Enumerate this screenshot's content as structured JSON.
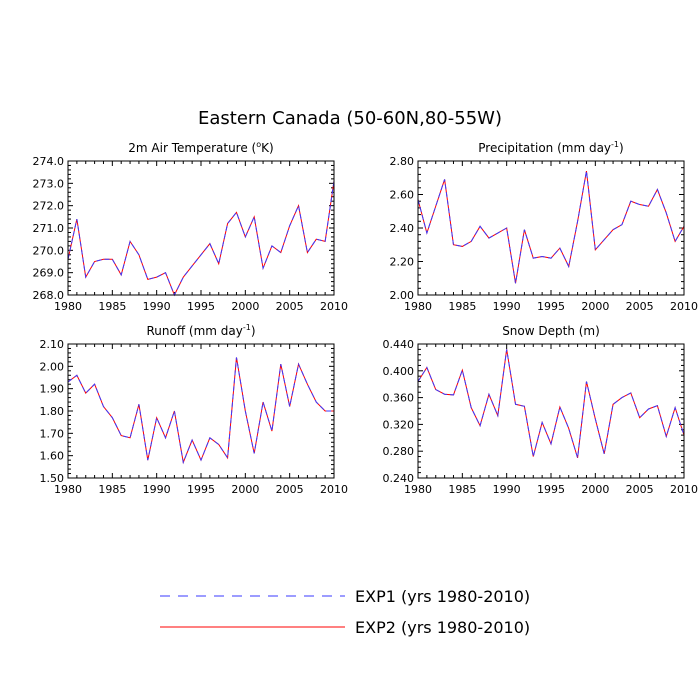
{
  "figure": {
    "title": "Eastern Canada (50-60N,80-55W)"
  },
  "legend": [
    {
      "label": "EXP1 (yrs 1980-2010)",
      "color": "#3a3aff",
      "style": "dashed"
    },
    {
      "label": "EXP2 (yrs 1980-2010)",
      "color": "#ff0000",
      "style": "solid"
    }
  ],
  "chart_data": [
    {
      "type": "line",
      "title": "2m Air Temperature (",
      "title_sup": "o",
      "title_end": "K)",
      "xlim": [
        1980,
        2010
      ],
      "ylim": [
        268.0,
        274.0
      ],
      "xticks": [
        1980,
        1985,
        1990,
        1995,
        2000,
        2005,
        2010
      ],
      "yticks": [
        "268.0",
        "269.0",
        "270.0",
        "271.0",
        "272.0",
        "273.0",
        "274.0"
      ],
      "x": [
        1980,
        1981,
        1982,
        1983,
        1984,
        1985,
        1986,
        1987,
        1988,
        1989,
        1990,
        1991,
        1992,
        1993,
        1994,
        1995,
        1996,
        1997,
        1998,
        1999,
        2000,
        2001,
        2002,
        2003,
        2004,
        2005,
        2006,
        2007,
        2008,
        2009,
        2010
      ],
      "series": [
        {
          "name": "EXP1 (yrs 1980-2010)",
          "values": [
            269.6,
            271.4,
            268.8,
            269.5,
            269.6,
            269.6,
            268.9,
            270.4,
            269.8,
            268.7,
            268.8,
            269.0,
            268.0,
            268.8,
            269.3,
            269.8,
            270.3,
            269.4,
            271.2,
            271.7,
            270.6,
            271.5,
            269.2,
            270.2,
            269.9,
            271.1,
            272.0,
            269.9,
            270.5,
            270.4,
            273.1
          ]
        },
        {
          "name": "EXP2 (yrs 1980-2010)",
          "values": [
            269.6,
            271.4,
            268.8,
            269.5,
            269.6,
            269.6,
            268.9,
            270.4,
            269.8,
            268.7,
            268.8,
            269.0,
            268.0,
            268.8,
            269.3,
            269.8,
            270.3,
            269.4,
            271.2,
            271.7,
            270.6,
            271.5,
            269.2,
            270.2,
            269.9,
            271.1,
            272.0,
            269.9,
            270.5,
            270.4,
            273.1
          ]
        }
      ]
    },
    {
      "type": "line",
      "title": "Precipitation (mm day",
      "title_sup": "-1",
      "title_end": ")",
      "xlim": [
        1980,
        2010
      ],
      "ylim": [
        2.0,
        2.8
      ],
      "xticks": [
        1980,
        1985,
        1990,
        1995,
        2000,
        2005,
        2010
      ],
      "yticks": [
        "2.00",
        "2.20",
        "2.40",
        "2.60",
        "2.80"
      ],
      "x": [
        1980,
        1981,
        1982,
        1983,
        1984,
        1985,
        1986,
        1987,
        1988,
        1989,
        1990,
        1991,
        1992,
        1993,
        1994,
        1995,
        1996,
        1997,
        1998,
        1999,
        2000,
        2001,
        2002,
        2003,
        2004,
        2005,
        2006,
        2007,
        2008,
        2009,
        2010
      ],
      "series": [
        {
          "name": "EXP1 (yrs 1980-2010)",
          "values": [
            2.57,
            2.37,
            2.53,
            2.69,
            2.3,
            2.29,
            2.32,
            2.41,
            2.34,
            2.37,
            2.4,
            2.07,
            2.39,
            2.22,
            2.23,
            2.22,
            2.28,
            2.17,
            2.44,
            2.74,
            2.27,
            2.33,
            2.39,
            2.42,
            2.56,
            2.54,
            2.53,
            2.63,
            2.49,
            2.32,
            2.41
          ]
        },
        {
          "name": "EXP2 (yrs 1980-2010)",
          "values": [
            2.57,
            2.37,
            2.53,
            2.69,
            2.3,
            2.29,
            2.32,
            2.41,
            2.34,
            2.37,
            2.4,
            2.07,
            2.39,
            2.22,
            2.23,
            2.22,
            2.28,
            2.17,
            2.44,
            2.74,
            2.27,
            2.33,
            2.39,
            2.42,
            2.56,
            2.54,
            2.53,
            2.63,
            2.49,
            2.32,
            2.41
          ]
        }
      ]
    },
    {
      "type": "line",
      "title": "Runoff (mm day",
      "title_sup": "-1",
      "title_end": ")",
      "xlim": [
        1980,
        2010
      ],
      "ylim": [
        1.5,
        2.1
      ],
      "xticks": [
        1980,
        1985,
        1990,
        1995,
        2000,
        2005,
        2010
      ],
      "yticks": [
        "1.50",
        "1.60",
        "1.70",
        "1.80",
        "1.90",
        "2.00",
        "2.10"
      ],
      "x": [
        1980,
        1981,
        1982,
        1983,
        1984,
        1985,
        1986,
        1987,
        1988,
        1989,
        1990,
        1991,
        1992,
        1993,
        1994,
        1995,
        1996,
        1997,
        1998,
        1999,
        2000,
        2001,
        2002,
        2003,
        2004,
        2005,
        2006,
        2007,
        2008,
        2009,
        2010
      ],
      "series": [
        {
          "name": "EXP1 (yrs 1980-2010)",
          "values": [
            1.93,
            1.96,
            1.88,
            1.92,
            1.82,
            1.77,
            1.69,
            1.68,
            1.83,
            1.58,
            1.77,
            1.68,
            1.8,
            1.57,
            1.67,
            1.58,
            1.68,
            1.65,
            1.59,
            2.04,
            1.8,
            1.61,
            1.84,
            1.71,
            2.01,
            1.82,
            2.01,
            1.92,
            1.84,
            1.8,
            1.8
          ]
        },
        {
          "name": "EXP2 (yrs 1980-2010)",
          "values": [
            1.93,
            1.96,
            1.88,
            1.92,
            1.82,
            1.77,
            1.69,
            1.68,
            1.83,
            1.58,
            1.77,
            1.68,
            1.8,
            1.57,
            1.67,
            1.58,
            1.68,
            1.65,
            1.59,
            2.04,
            1.8,
            1.61,
            1.84,
            1.71,
            2.01,
            1.82,
            2.01,
            1.92,
            1.84,
            1.8,
            1.8
          ]
        }
      ]
    },
    {
      "type": "line",
      "title": "Snow Depth (m)",
      "title_sup": "",
      "title_end": "",
      "xlim": [
        1980,
        2010
      ],
      "ylim": [
        0.24,
        0.44
      ],
      "xticks": [
        1980,
        1985,
        1990,
        1995,
        2000,
        2005,
        2010
      ],
      "yticks": [
        "0.240",
        "0.280",
        "0.320",
        "0.360",
        "0.400",
        "0.440"
      ],
      "x": [
        1980,
        1981,
        1982,
        1983,
        1984,
        1985,
        1986,
        1987,
        1988,
        1989,
        1990,
        1991,
        1992,
        1993,
        1994,
        1995,
        1996,
        1997,
        1998,
        1999,
        2000,
        2001,
        2002,
        2003,
        2004,
        2005,
        2006,
        2007,
        2008,
        2009,
        2010
      ],
      "series": [
        {
          "name": "EXP1 (yrs 1980-2010)",
          "values": [
            0.384,
            0.405,
            0.372,
            0.365,
            0.364,
            0.401,
            0.345,
            0.318,
            0.365,
            0.333,
            0.432,
            0.35,
            0.347,
            0.272,
            0.323,
            0.291,
            0.346,
            0.314,
            0.27,
            0.384,
            0.328,
            0.276,
            0.35,
            0.36,
            0.367,
            0.33,
            0.343,
            0.348,
            0.302,
            0.345,
            0.304
          ]
        },
        {
          "name": "EXP2 (yrs 1980-2010)",
          "values": [
            0.384,
            0.405,
            0.372,
            0.365,
            0.364,
            0.401,
            0.345,
            0.318,
            0.365,
            0.333,
            0.432,
            0.35,
            0.347,
            0.272,
            0.323,
            0.291,
            0.346,
            0.314,
            0.27,
            0.384,
            0.328,
            0.276,
            0.35,
            0.36,
            0.367,
            0.33,
            0.343,
            0.348,
            0.302,
            0.345,
            0.304
          ]
        }
      ]
    }
  ]
}
